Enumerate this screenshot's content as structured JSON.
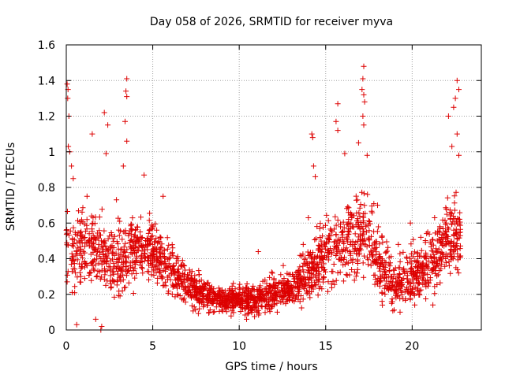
{
  "chart_data": {
    "type": "scatter",
    "title": "Day 058 of 2026, SRMTID for receiver myva",
    "xlabel": "GPS time / hours",
    "ylabel": "SRMTID / TECUs",
    "xlim": [
      0,
      24
    ],
    "ylim": [
      0,
      1.6
    ],
    "grid": true,
    "marker": "+",
    "x_ticks": [
      0,
      5,
      10,
      15,
      20
    ],
    "x_tick_labels": [
      "0",
      "5",
      "10",
      "15",
      "20"
    ],
    "y_ticks": [
      0,
      0.2,
      0.4,
      0.6,
      0.8,
      1,
      1.2,
      1.4,
      1.6
    ],
    "y_tick_labels": [
      "0",
      "0.2",
      "0.4",
      "0.6",
      "0.8",
      "1",
      "1.2",
      "1.4",
      "1.6"
    ],
    "colors": {
      "series": "#dd0000",
      "grid": "#a0a0a0",
      "axes": "#000000"
    },
    "envelope": {
      "description": "approximate median SRMTID vs GPS hour used to depict the point cloud",
      "x": [
        0,
        0.5,
        1,
        2,
        3,
        4,
        5,
        6,
        7,
        8,
        9,
        10,
        11,
        12,
        13,
        14,
        14.5,
        15,
        16,
        17,
        17.5,
        18,
        19,
        20,
        21,
        22,
        23
      ],
      "median": [
        0.5,
        0.42,
        0.5,
        0.42,
        0.38,
        0.45,
        0.45,
        0.35,
        0.25,
        0.2,
        0.16,
        0.17,
        0.17,
        0.2,
        0.25,
        0.3,
        0.35,
        0.42,
        0.48,
        0.55,
        0.55,
        0.38,
        0.25,
        0.3,
        0.38,
        0.5,
        0.55
      ],
      "spread": [
        0.15,
        0.14,
        0.16,
        0.15,
        0.14,
        0.14,
        0.12,
        0.1,
        0.08,
        0.06,
        0.05,
        0.05,
        0.06,
        0.07,
        0.08,
        0.1,
        0.12,
        0.13,
        0.14,
        0.16,
        0.16,
        0.13,
        0.09,
        0.1,
        0.12,
        0.14,
        0.15
      ],
      "point_count": 2300,
      "start_hour": 0,
      "end_hour": 22.8
    },
    "notable_points": [
      {
        "x": 0.05,
        "y": 1.38
      },
      {
        "x": 0.1,
        "y": 1.35
      },
      {
        "x": 0.08,
        "y": 1.3
      },
      {
        "x": 0.15,
        "y": 1.2
      },
      {
        "x": 0.12,
        "y": 1.03
      },
      {
        "x": 0.2,
        "y": 1.0
      },
      {
        "x": 0.3,
        "y": 0.92
      },
      {
        "x": 1.5,
        "y": 1.1
      },
      {
        "x": 2.2,
        "y": 1.22
      },
      {
        "x": 2.4,
        "y": 1.15
      },
      {
        "x": 2.3,
        "y": 0.99
      },
      {
        "x": 3.5,
        "y": 1.41
      },
      {
        "x": 3.45,
        "y": 1.34
      },
      {
        "x": 3.5,
        "y": 1.31
      },
      {
        "x": 3.4,
        "y": 1.17
      },
      {
        "x": 3.5,
        "y": 1.06
      },
      {
        "x": 3.3,
        "y": 0.92
      },
      {
        "x": 2.9,
        "y": 0.73
      },
      {
        "x": 4.5,
        "y": 0.87
      },
      {
        "x": 5.6,
        "y": 0.75
      },
      {
        "x": 14.2,
        "y": 1.1
      },
      {
        "x": 14.25,
        "y": 1.08
      },
      {
        "x": 14.3,
        "y": 0.92
      },
      {
        "x": 14.4,
        "y": 0.86
      },
      {
        "x": 15.7,
        "y": 1.27
      },
      {
        "x": 15.6,
        "y": 1.17
      },
      {
        "x": 15.7,
        "y": 1.12
      },
      {
        "x": 16.1,
        "y": 0.99
      },
      {
        "x": 17.2,
        "y": 1.48
      },
      {
        "x": 17.15,
        "y": 1.41
      },
      {
        "x": 17.1,
        "y": 1.35
      },
      {
        "x": 17.2,
        "y": 1.32
      },
      {
        "x": 17.25,
        "y": 1.28
      },
      {
        "x": 17.15,
        "y": 1.2
      },
      {
        "x": 17.2,
        "y": 1.15
      },
      {
        "x": 16.9,
        "y": 1.05
      },
      {
        "x": 17.4,
        "y": 0.98
      },
      {
        "x": 22.6,
        "y": 1.4
      },
      {
        "x": 22.7,
        "y": 1.35
      },
      {
        "x": 22.5,
        "y": 1.3
      },
      {
        "x": 22.4,
        "y": 1.25
      },
      {
        "x": 22.1,
        "y": 1.2
      },
      {
        "x": 22.6,
        "y": 1.1
      },
      {
        "x": 22.3,
        "y": 1.03
      },
      {
        "x": 22.7,
        "y": 0.98
      },
      {
        "x": 0.4,
        "y": 0.85
      },
      {
        "x": 1.2,
        "y": 0.75
      },
      {
        "x": 8.5,
        "y": 0.1
      },
      {
        "x": 9.2,
        "y": 0.12
      },
      {
        "x": 10.5,
        "y": 0.09
      },
      {
        "x": 12.2,
        "y": 0.1
      },
      {
        "x": 2.0,
        "y": 0.0
      },
      {
        "x": 2.05,
        "y": 0.02
      },
      {
        "x": 0.6,
        "y": 0.03
      },
      {
        "x": 1.7,
        "y": 0.06
      },
      {
        "x": 19.3,
        "y": 0.1
      },
      {
        "x": 21.2,
        "y": 0.14
      },
      {
        "x": 11.1,
        "y": 0.44
      },
      {
        "x": 14.0,
        "y": 0.63
      },
      {
        "x": 13.7,
        "y": 0.48
      },
      {
        "x": 18.0,
        "y": 0.7
      },
      {
        "x": 19.2,
        "y": 0.48
      },
      {
        "x": 19.9,
        "y": 0.6
      },
      {
        "x": 20.5,
        "y": 0.52
      },
      {
        "x": 21.3,
        "y": 0.63
      },
      {
        "x": 21.6,
        "y": 0.58
      }
    ]
  }
}
